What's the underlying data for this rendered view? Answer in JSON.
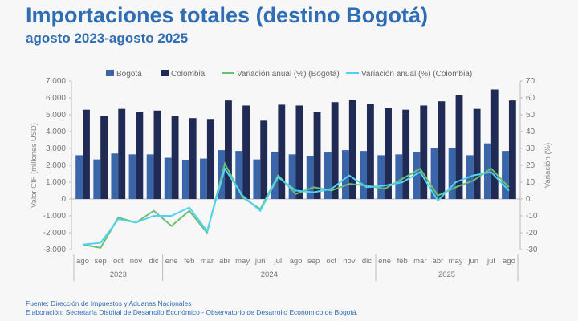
{
  "header": {
    "title": "Importaciones totales (destino Bogotá)",
    "subtitle": "agosto 2023-agosto 2025"
  },
  "footer": {
    "source": "Fuente: Dirección de Impuestos y Aduanas Nacionales",
    "credit": "Elaboración: Secretaría Distrital de Desarrollo Económico - Observatorio de Desarrollo Económico de Bogotá."
  },
  "chart_data": {
    "type": "bar",
    "title": "Importaciones totales (destino Bogotá)",
    "categories": [
      "ago",
      "sep",
      "oct",
      "nov",
      "dic",
      "ene",
      "feb",
      "mar",
      "abr",
      "may",
      "jun",
      "jul",
      "ago",
      "sep",
      "oct",
      "nov",
      "dic",
      "ene",
      "feb",
      "mar",
      "abr",
      "may",
      "jun",
      "jul",
      "ago"
    ],
    "year_groups": [
      {
        "label": "2023",
        "count": 5
      },
      {
        "label": "2024",
        "count": 12
      },
      {
        "label": "2025",
        "count": 8
      }
    ],
    "ylabel": "Valor CIF (millones USD)",
    "y2label": "Variación (%)",
    "ylim": [
      -3000,
      7000
    ],
    "y2lim": [
      -30,
      70
    ],
    "yticks": [
      "-3.000",
      "-2.000",
      "-1.000",
      "0",
      "1.000",
      "2.000",
      "3.000",
      "4.000",
      "5.000",
      "6.000",
      "7.000"
    ],
    "y2ticks": [
      "-30",
      "-20",
      "-10",
      "0",
      "10",
      "20",
      "30",
      "40",
      "50",
      "60",
      "70"
    ],
    "legend_position": "top",
    "series": [
      {
        "name": "Bogotá",
        "type": "bar",
        "axis": "left",
        "color": "#3a65a8",
        "values": [
          2600,
          2350,
          2700,
          2650,
          2650,
          2450,
          2300,
          2400,
          2900,
          2850,
          2350,
          2800,
          2650,
          2550,
          2800,
          2900,
          2850,
          2600,
          2650,
          2800,
          3000,
          3050,
          2600,
          3300,
          2850
        ]
      },
      {
        "name": "Colombia",
        "type": "bar",
        "axis": "left",
        "color": "#1f2a55",
        "values": [
          5300,
          4950,
          5350,
          5150,
          5250,
          4950,
          4800,
          4750,
          5850,
          5550,
          4650,
          5600,
          5550,
          5150,
          5750,
          5900,
          5650,
          5400,
          5300,
          5550,
          5800,
          6150,
          5350,
          6500,
          5850
        ]
      },
      {
        "name": "Variación anual (%) (Bogotá)",
        "type": "line",
        "axis": "right",
        "color": "#6cbf73",
        "values": [
          -27,
          -29,
          -11,
          -14,
          -7,
          -16,
          -7,
          -20,
          21,
          1,
          -6,
          14,
          3,
          7,
          5,
          9,
          8,
          6,
          12,
          18,
          2,
          7,
          11,
          18,
          7
        ]
      },
      {
        "name": "Variación anual (%) (Colombia)",
        "type": "line",
        "axis": "right",
        "color": "#4fd3f5",
        "values": [
          -27,
          -26,
          -12,
          -14,
          -10,
          -10,
          -5,
          -19,
          18,
          2,
          -7,
          13,
          5,
          4,
          6,
          14,
          7,
          8,
          10,
          16,
          -1,
          10,
          14,
          16,
          5
        ]
      }
    ]
  }
}
